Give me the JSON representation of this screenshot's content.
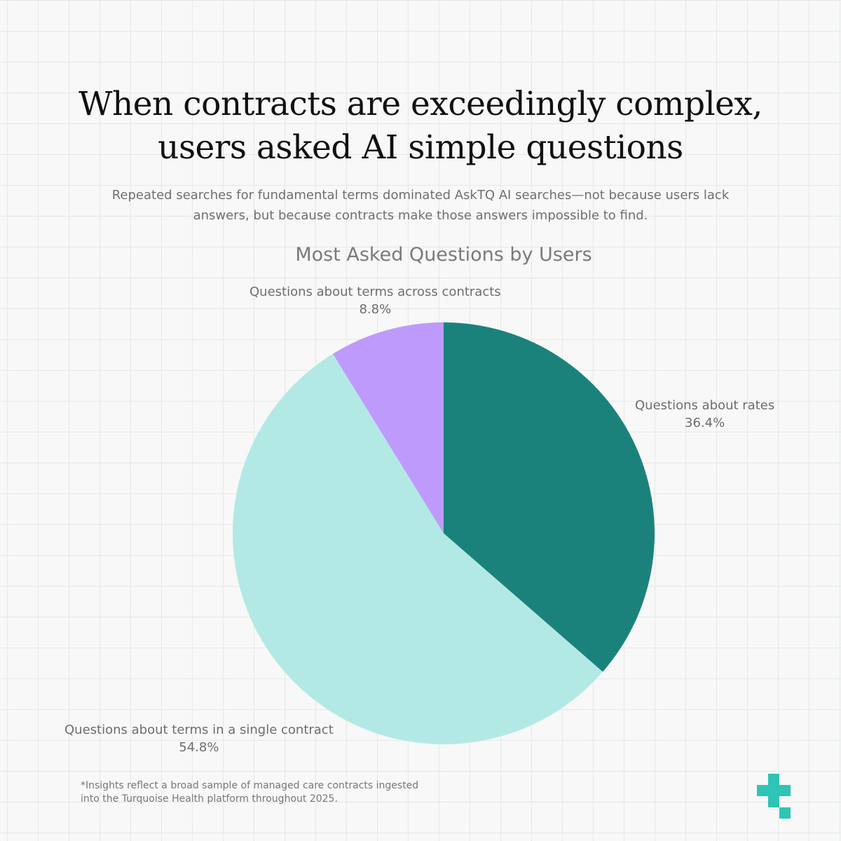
{
  "headline": {
    "line1": "When contracts are exceedingly complex,",
    "line2": "users asked AI simple questions"
  },
  "subtitle": {
    "line1": "Repeated searches for fundamental terms dominated AskTQ AI searches—not because users lack",
    "line2": "answers, but because contracts make those answers impossible to find."
  },
  "chart_data": {
    "type": "pie",
    "title": "Most Asked Questions by Users",
    "slices": [
      {
        "name": "Questions about rates",
        "value": 36.4,
        "label": "36.4%",
        "color": "#1b827b"
      },
      {
        "name": "Questions about terms in a single contract",
        "value": 54.8,
        "label": "54.8%",
        "color": "#b3e9e5"
      },
      {
        "name": "Questions about terms across contracts",
        "value": 8.8,
        "label": "8.8%",
        "color": "#be9bfb"
      }
    ],
    "start_angle": "12 o'clock",
    "direction": "clockwise"
  },
  "footnote": {
    "line1": "*Insights reflect a broad sample of managed care contracts ingested",
    "line2": "into the Turquoise Health platform throughout 2025."
  },
  "logo": {
    "icon": "turquoise-health-cross-icon",
    "color": "#2ec4b6",
    "accent": "#2ec4b6"
  }
}
